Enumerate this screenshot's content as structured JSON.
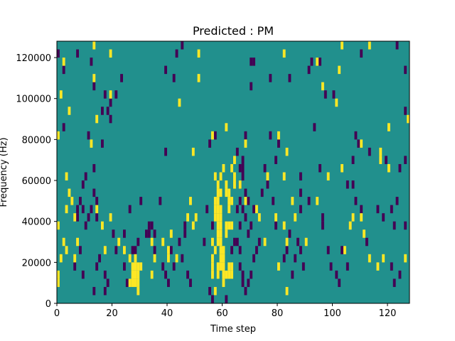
{
  "chart_data": {
    "type": "heatmap",
    "title": "Predicted : PM",
    "xlabel": "Time step",
    "ylabel": "Frequency (Hz)",
    "xlim": [
      0,
      128
    ],
    "ylim": [
      0,
      128000
    ],
    "x_ticks": [
      0,
      20,
      40,
      60,
      80,
      100,
      120
    ],
    "y_ticks": [
      0,
      20000,
      40000,
      60000,
      80000,
      100000,
      120000
    ],
    "x_tick_labels": [
      "0",
      "20",
      "40",
      "60",
      "80",
      "100",
      "120"
    ],
    "y_tick_labels": [
      "0",
      "20000",
      "40000",
      "60000",
      "80000",
      "100000",
      "120000"
    ],
    "grid": false,
    "colormap": "viridis",
    "colors": {
      "background": "#21908d",
      "low": "#440154",
      "high": "#fde725"
    },
    "values_legend": {
      "background": 0,
      "low": -1,
      "high": 1
    },
    "cell_height_hz": 4000,
    "cells_high": [
      [
        13,
        124000
      ],
      [
        19,
        120000
      ],
      [
        51,
        120000
      ],
      [
        103,
        124000
      ],
      [
        113,
        124000
      ],
      [
        2,
        116000
      ],
      [
        82,
        120000
      ],
      [
        94,
        116000
      ],
      [
        13,
        108000
      ],
      [
        51,
        108000
      ],
      [
        96,
        104000
      ],
      [
        102,
        112000
      ],
      [
        1,
        100000
      ],
      [
        4,
        92000
      ],
      [
        14,
        88000
      ],
      [
        19,
        100000
      ],
      [
        44,
        96000
      ],
      [
        101,
        96000
      ],
      [
        0,
        80000
      ],
      [
        12,
        76000
      ],
      [
        49,
        72000
      ],
      [
        56,
        80000
      ],
      [
        61,
        84000
      ],
      [
        68,
        76000
      ],
      [
        80,
        80000
      ],
      [
        83,
        72000
      ],
      [
        110,
        76000
      ],
      [
        117,
        72000
      ],
      [
        120,
        84000
      ],
      [
        127,
        88000
      ],
      [
        117,
        68000
      ],
      [
        120,
        64000
      ],
      [
        103,
        64000
      ],
      [
        3,
        60000
      ],
      [
        4,
        52000
      ],
      [
        5,
        48000
      ],
      [
        3,
        44000
      ],
      [
        6,
        40000
      ],
      [
        0,
        36000
      ],
      [
        2,
        28000
      ],
      [
        3,
        24000
      ],
      [
        1,
        20000
      ],
      [
        0,
        12000
      ],
      [
        0,
        8000
      ],
      [
        6,
        20000
      ],
      [
        7,
        28000
      ],
      [
        14,
        44000
      ],
      [
        19,
        40000
      ],
      [
        22,
        28000
      ],
      [
        24,
        24000
      ],
      [
        16,
        36000
      ],
      [
        17,
        24000
      ],
      [
        26,
        20000
      ],
      [
        27,
        16000
      ],
      [
        27,
        12000
      ],
      [
        27,
        8000
      ],
      [
        28,
        20000
      ],
      [
        28,
        16000
      ],
      [
        28,
        12000
      ],
      [
        28,
        8000
      ],
      [
        29,
        16000
      ],
      [
        29,
        12000
      ],
      [
        29,
        8000
      ],
      [
        29,
        4000
      ],
      [
        26,
        8000
      ],
      [
        30,
        16000
      ],
      [
        34,
        12000
      ],
      [
        35,
        20000
      ],
      [
        38,
        28000
      ],
      [
        40,
        24000
      ],
      [
        40,
        20000
      ],
      [
        41,
        32000
      ],
      [
        34,
        28000
      ],
      [
        47,
        40000
      ],
      [
        49,
        36000
      ],
      [
        48,
        48000
      ],
      [
        50,
        40000
      ],
      [
        43,
        20000
      ],
      [
        56,
        28000
      ],
      [
        57,
        24000
      ],
      [
        56,
        20000
      ],
      [
        56,
        16000
      ],
      [
        56,
        12000
      ],
      [
        57,
        44000
      ],
      [
        57,
        48000
      ],
      [
        57,
        40000
      ],
      [
        58,
        52000
      ],
      [
        58,
        44000
      ],
      [
        58,
        40000
      ],
      [
        58,
        36000
      ],
      [
        58,
        32000
      ],
      [
        58,
        28000
      ],
      [
        58,
        56000
      ],
      [
        59,
        60000
      ],
      [
        59,
        52000
      ],
      [
        59,
        44000
      ],
      [
        59,
        40000
      ],
      [
        59,
        36000
      ],
      [
        59,
        32000
      ],
      [
        59,
        28000
      ],
      [
        59,
        24000
      ],
      [
        59,
        20000
      ],
      [
        59,
        16000
      ],
      [
        60,
        24000
      ],
      [
        60,
        20000
      ],
      [
        60,
        16000
      ],
      [
        60,
        12000
      ],
      [
        60,
        8000
      ],
      [
        58,
        16000
      ],
      [
        58,
        12000
      ],
      [
        57,
        4000
      ],
      [
        61,
        12000
      ],
      [
        61,
        56000
      ],
      [
        62,
        52000
      ],
      [
        62,
        48000
      ],
      [
        62,
        44000
      ],
      [
        63,
        48000
      ],
      [
        62,
        36000
      ],
      [
        63,
        36000
      ],
      [
        62,
        16000
      ],
      [
        62,
        12000
      ],
      [
        63,
        16000
      ],
      [
        63,
        12000
      ],
      [
        63,
        64000
      ],
      [
        64,
        68000
      ],
      [
        61,
        36000
      ],
      [
        64,
        56000
      ],
      [
        58,
        48000
      ],
      [
        57,
        60000
      ],
      [
        60,
        64000
      ],
      [
        66,
        56000
      ],
      [
        68,
        48000
      ],
      [
        72,
        44000
      ],
      [
        73,
        40000
      ],
      [
        75,
        28000
      ],
      [
        80,
        16000
      ],
      [
        82,
        36000
      ],
      [
        83,
        28000
      ],
      [
        79,
        40000
      ],
      [
        86,
        40000
      ],
      [
        85,
        48000
      ],
      [
        90,
        28000
      ],
      [
        83,
        4000
      ],
      [
        94,
        48000
      ],
      [
        98,
        60000
      ],
      [
        104,
        24000
      ],
      [
        106,
        36000
      ],
      [
        107,
        40000
      ],
      [
        110,
        40000
      ],
      [
        111,
        32000
      ],
      [
        113,
        20000
      ],
      [
        116,
        16000
      ],
      [
        118,
        20000
      ],
      [
        126,
        20000
      ],
      [
        76,
        60000
      ],
      [
        82,
        60000
      ],
      [
        61,
        52000
      ],
      [
        61,
        32000
      ],
      [
        64,
        60000
      ]
    ],
    "cells_low": [
      [
        0,
        120000
      ],
      [
        2,
        112000
      ],
      [
        7,
        120000
      ],
      [
        12,
        116000
      ],
      [
        13,
        104000
      ],
      [
        21,
        100000
      ],
      [
        23,
        108000
      ],
      [
        19,
        96000
      ],
      [
        39,
        112000
      ],
      [
        43,
        120000
      ],
      [
        45,
        124000
      ],
      [
        70,
        116000
      ],
      [
        71,
        116000
      ],
      [
        70,
        104000
      ],
      [
        77,
        108000
      ],
      [
        84,
        108000
      ],
      [
        92,
        116000
      ],
      [
        91,
        112000
      ],
      [
        95,
        116000
      ],
      [
        110,
        120000
      ],
      [
        123,
        124000
      ],
      [
        126,
        112000
      ],
      [
        126,
        92000
      ],
      [
        100,
        100000
      ],
      [
        97,
        100000
      ],
      [
        17,
        100000
      ],
      [
        16,
        92000
      ],
      [
        19,
        88000
      ],
      [
        18,
        92000
      ],
      [
        42,
        108000
      ],
      [
        2,
        84000
      ],
      [
        11,
        80000
      ],
      [
        16,
        76000
      ],
      [
        39,
        72000
      ],
      [
        55,
        76000
      ],
      [
        57,
        80000
      ],
      [
        68,
        80000
      ],
      [
        77,
        80000
      ],
      [
        80,
        76000
      ],
      [
        93,
        84000
      ],
      [
        108,
        80000
      ],
      [
        109,
        76000
      ],
      [
        107,
        68000
      ],
      [
        113,
        72000
      ],
      [
        124,
        64000
      ],
      [
        126,
        68000
      ],
      [
        119,
        68000
      ],
      [
        7,
        40000
      ],
      [
        7,
        44000
      ],
      [
        8,
        48000
      ],
      [
        9,
        44000
      ],
      [
        10,
        36000
      ],
      [
        11,
        40000
      ],
      [
        9,
        56000
      ],
      [
        12,
        44000
      ],
      [
        14,
        48000
      ],
      [
        14,
        40000
      ],
      [
        13,
        52000
      ],
      [
        20,
        32000
      ],
      [
        24,
        32000
      ],
      [
        27,
        24000
      ],
      [
        28,
        24000
      ],
      [
        29,
        28000
      ],
      [
        32,
        32000
      ],
      [
        33,
        32000
      ],
      [
        35,
        24000
      ],
      [
        38,
        16000
      ],
      [
        39,
        12000
      ],
      [
        40,
        8000
      ],
      [
        41,
        24000
      ],
      [
        42,
        16000
      ],
      [
        45,
        20000
      ],
      [
        47,
        12000
      ],
      [
        48,
        8000
      ],
      [
        46,
        36000
      ],
      [
        53,
        28000
      ],
      [
        55,
        4000
      ],
      [
        56,
        0
      ],
      [
        65,
        72000
      ],
      [
        66,
        64000
      ],
      [
        66,
        56000
      ],
      [
        67,
        64000
      ],
      [
        67,
        60000
      ],
      [
        68,
        52000
      ],
      [
        69,
        48000
      ],
      [
        67,
        44000
      ],
      [
        68,
        40000
      ],
      [
        69,
        32000
      ],
      [
        65,
        28000
      ],
      [
        66,
        24000
      ],
      [
        66,
        16000
      ],
      [
        67,
        12000
      ],
      [
        70,
        12000
      ],
      [
        71,
        20000
      ],
      [
        72,
        24000
      ],
      [
        73,
        28000
      ],
      [
        74,
        52000
      ],
      [
        76,
        56000
      ],
      [
        78,
        48000
      ],
      [
        79,
        36000
      ],
      [
        82,
        20000
      ],
      [
        83,
        24000
      ],
      [
        84,
        32000
      ],
      [
        85,
        12000
      ],
      [
        86,
        20000
      ],
      [
        87,
        28000
      ],
      [
        88,
        24000
      ],
      [
        89,
        16000
      ],
      [
        88,
        52000
      ],
      [
        88,
        44000
      ],
      [
        91,
        48000
      ],
      [
        96,
        40000
      ],
      [
        96,
        36000
      ],
      [
        98,
        24000
      ],
      [
        99,
        16000
      ],
      [
        101,
        12000
      ],
      [
        102,
        8000
      ],
      [
        103,
        24000
      ],
      [
        105,
        16000
      ],
      [
        107,
        56000
      ],
      [
        110,
        44000
      ],
      [
        112,
        28000
      ],
      [
        116,
        44000
      ],
      [
        118,
        40000
      ],
      [
        121,
        16000
      ],
      [
        122,
        8000
      ],
      [
        124,
        12000
      ],
      [
        126,
        36000
      ],
      [
        14,
        16000
      ],
      [
        15,
        20000
      ],
      [
        17,
        12000
      ],
      [
        18,
        8000
      ],
      [
        13,
        4000
      ],
      [
        17,
        4000
      ],
      [
        6,
        16000
      ],
      [
        8,
        24000
      ],
      [
        9,
        12000
      ],
      [
        21,
        24000
      ],
      [
        24,
        16000
      ],
      [
        25,
        8000
      ],
      [
        44,
        28000
      ],
      [
        46,
        32000
      ],
      [
        61,
        0
      ],
      [
        63,
        24000
      ],
      [
        64,
        28000
      ],
      [
        65,
        44000
      ],
      [
        66,
        36000
      ],
      [
        67,
        8000
      ],
      [
        68,
        4000
      ],
      [
        69,
        8000
      ],
      [
        70,
        36000
      ],
      [
        71,
        44000
      ],
      [
        75,
        64000
      ],
      [
        79,
        68000
      ],
      [
        88,
        60000
      ],
      [
        95,
        64000
      ],
      [
        105,
        56000
      ],
      [
        108,
        48000
      ],
      [
        121,
        44000
      ],
      [
        123,
        48000
      ],
      [
        122,
        36000
      ],
      [
        10,
        60000
      ],
      [
        13,
        64000
      ],
      [
        26,
        44000
      ],
      [
        30,
        48000
      ],
      [
        33,
        36000
      ],
      [
        34,
        36000
      ],
      [
        35,
        32000
      ],
      [
        37,
        48000
      ],
      [
        54,
        44000
      ],
      [
        56,
        36000
      ],
      [
        66,
        48000
      ],
      [
        67,
        68000
      ]
    ]
  }
}
